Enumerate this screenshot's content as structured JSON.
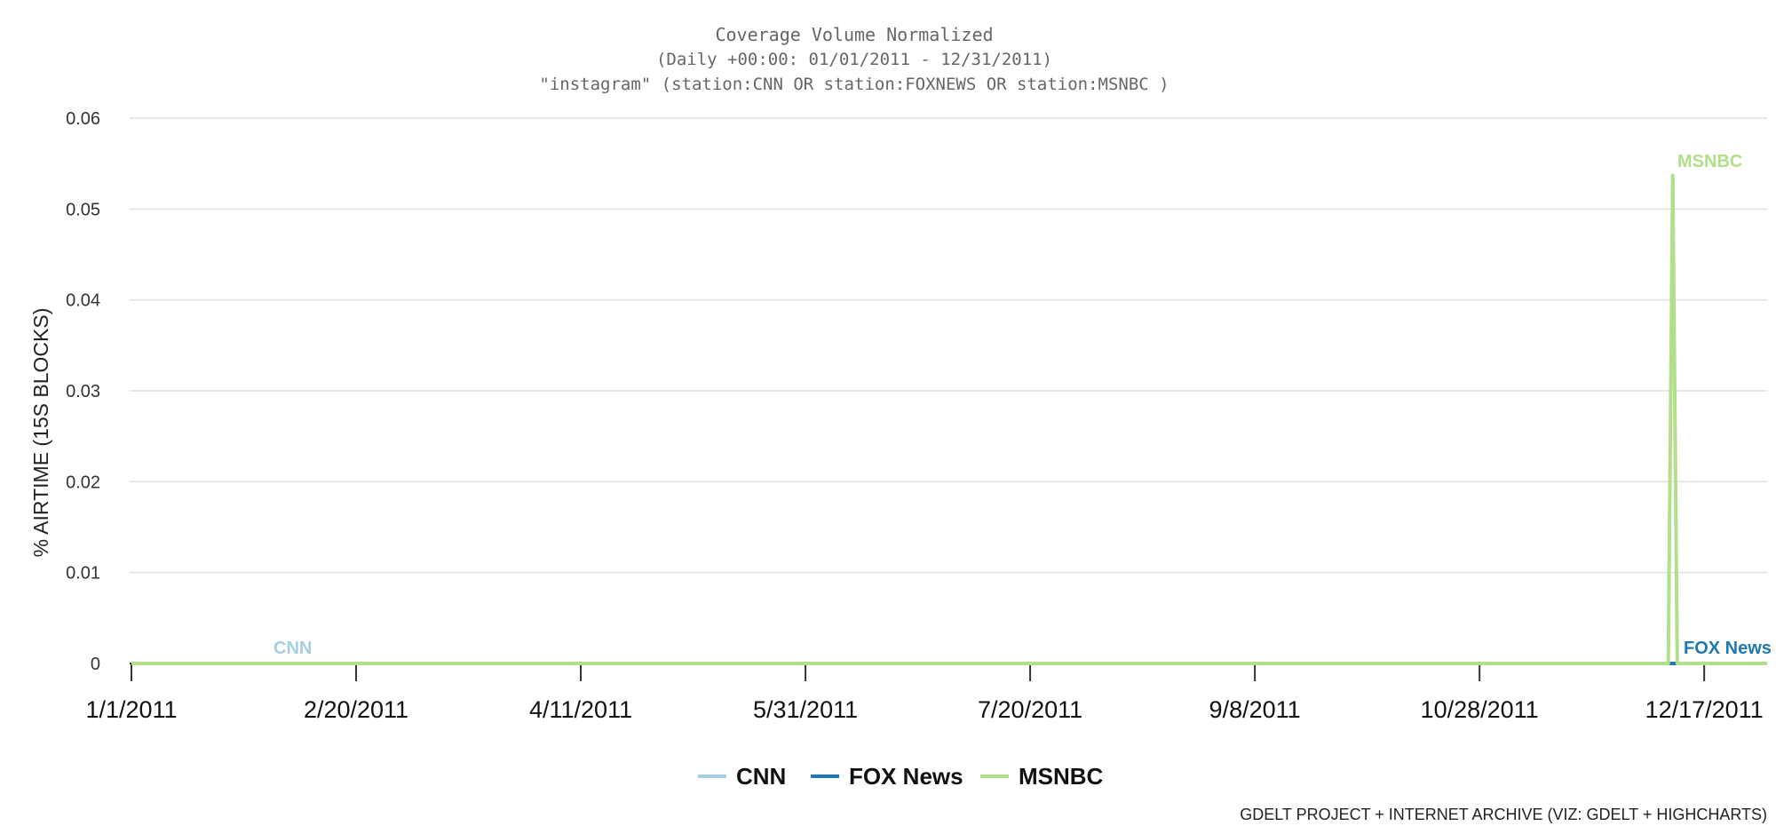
{
  "chart_data": {
    "type": "line",
    "title": "Coverage Volume Normalized",
    "subtitle_lines": [
      "(Daily +00:00: 01/01/2011 - 12/31/2011)",
      "\"instagram\" (station:CNN OR station:FOXNEWS OR station:MSNBC )"
    ],
    "ylabel": "% AIRTIME (15S BLOCKS)",
    "xlabel": "",
    "x_range": [
      "2011-01-01",
      "2011-12-31"
    ],
    "ylim": [
      0,
      0.06
    ],
    "y_ticks": [
      0,
      0.01,
      0.02,
      0.03,
      0.04,
      0.05,
      0.06
    ],
    "y_tick_labels": [
      "0",
      "0.01",
      "0.02",
      "0.03",
      "0.04",
      "0.05",
      "0.06"
    ],
    "x_ticks": [
      "2011-01-01",
      "2011-02-20",
      "2011-04-11",
      "2011-05-31",
      "2011-07-20",
      "2011-09-08",
      "2011-10-28",
      "2011-12-17"
    ],
    "x_tick_labels": [
      "1/1/2011",
      "2/20/2011",
      "4/11/2011",
      "5/31/2011",
      "7/20/2011",
      "9/8/2011",
      "10/28/2011",
      "12/17/2011"
    ],
    "grid": true,
    "legend_position": "bottom-center",
    "series": [
      {
        "name": "CNN",
        "color": "#a6cee3",
        "points": [
          [
            "2011-01-01",
            0
          ],
          [
            "2011-12-31",
            0
          ]
        ]
      },
      {
        "name": "FOX News",
        "color": "#1f78b4",
        "points": [
          [
            "2011-01-01",
            0
          ],
          [
            "2011-12-31",
            0
          ]
        ]
      },
      {
        "name": "MSNBC",
        "color": "#b2df8a",
        "points": [
          [
            "2011-01-01",
            0
          ],
          [
            "2011-12-09",
            0
          ],
          [
            "2011-12-10",
            0.0537
          ],
          [
            "2011-12-11",
            0
          ],
          [
            "2011-12-31",
            0
          ]
        ]
      }
    ],
    "credits": "GDELT PROJECT + INTERNET ARCHIVE (VIZ: GDELT + HIGHCHARTS)"
  }
}
